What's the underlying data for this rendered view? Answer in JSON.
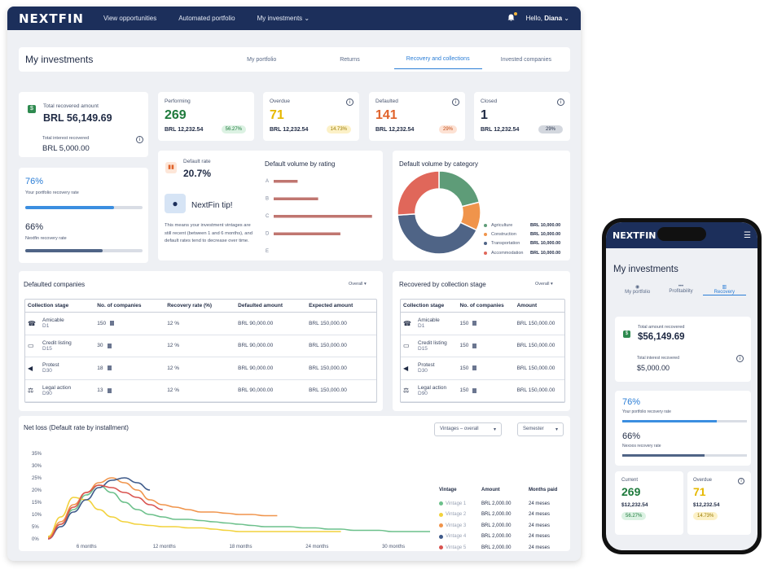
{
  "nav": {
    "logo": "NEXTFIN",
    "links": [
      "View opportunities",
      "Automated portfolio",
      "My investments"
    ],
    "greeting": "Hello, ",
    "user": "Diana"
  },
  "page": {
    "title": "My investments",
    "tabs": [
      "My portfolio",
      "Returns",
      "Recovery and collections",
      "Invested companies"
    ],
    "active_tab": 2
  },
  "recovered": {
    "label": "Total recovered amount",
    "value": "BRL 56,149.69",
    "interest_label": "Total interest recovered",
    "interest_value": "BRL 5,000.00"
  },
  "rates": {
    "portfolio_value": "76%",
    "portfolio_label": "Your portfolio recovery rate",
    "portfolio_fill": 0.76,
    "nextfin_value": "66%",
    "nextfin_label": "Nextfin recovery rate",
    "nextfin_fill": 0.66
  },
  "status": [
    {
      "label": "Performing",
      "count": "269",
      "amount": "BRL 12,232.54",
      "pct": "56.27%",
      "color": "#1e7a3c",
      "pill_bg": "#dcf2e3",
      "pill_fg": "#1e7a3c"
    },
    {
      "label": "Overdue",
      "count": "71",
      "amount": "BRL 12,232.54",
      "pct": "14.73%",
      "color": "#e6b800",
      "pill_bg": "#fcf1c7",
      "pill_fg": "#9a7a00"
    },
    {
      "label": "Defaulted",
      "count": "141",
      "amount": "BRL 12,232.54",
      "pct": "29%",
      "color": "#e0622a",
      "pill_bg": "#fde2d4",
      "pill_fg": "#c04a15"
    },
    {
      "label": "Closed",
      "count": "1",
      "amount": "BRL 12,232.54",
      "pct": "29%",
      "color": "#1f2a44",
      "pill_bg": "#d3d7de",
      "pill_fg": "#1f2a44"
    }
  ],
  "default_rate": {
    "label": "Default rate",
    "value": "20.7%",
    "tip_title": "NextFin tip!",
    "tip_text": "This means your investment vintages are still recent (between 1 and 6 months), and default rates tend to decrease over time."
  },
  "rating_chart": {
    "title": "Default volume by rating",
    "categories": [
      "A",
      "B",
      "C",
      "D",
      "E"
    ],
    "values": [
      28,
      52,
      115,
      78,
      0
    ],
    "bar_color": "#c07670"
  },
  "category_chart": {
    "title": "Default volume by category",
    "slices": [
      {
        "name": "Agriculture",
        "value": "BRL 10,000.00",
        "share": 0.21,
        "color": "#5e9c78"
      },
      {
        "name": "Construction",
        "value": "BRL 10,000.00",
        "share": 0.11,
        "color": "#f0944b"
      },
      {
        "name": "Transportation",
        "value": "BRL 10,000.00",
        "share": 0.42,
        "color": "#4f6486"
      },
      {
        "name": "Accommodation",
        "value": "BRL 10,000.00",
        "share": 0.26,
        "color": "#e0675a"
      }
    ]
  },
  "defaulted": {
    "title": "Defaulted companies",
    "filter": "Overall",
    "headers": [
      "Collection stage",
      "No. of companies",
      "Recovery rate (%)",
      "Defaulted amount",
      "Expected amount"
    ],
    "rows": [
      {
        "stage": "Amicable",
        "sub": "D1",
        "icon": "☎",
        "count": "150",
        "rate": "12 %",
        "defaulted": "BRL 90,000.00",
        "expected": "BRL 150,000.00"
      },
      {
        "stage": "Credit listing",
        "sub": "D15",
        "icon": "▭",
        "count": "30",
        "rate": "12 %",
        "defaulted": "BRL 90,000.00",
        "expected": "BRL 150,000.00"
      },
      {
        "stage": "Protest",
        "sub": "D30",
        "icon": "◀",
        "count": "18",
        "rate": "12 %",
        "defaulted": "BRL 90,000.00",
        "expected": "BRL 150,000.00"
      },
      {
        "stage": "Legal action",
        "sub": "D90",
        "icon": "⚖",
        "count": "13",
        "rate": "12 %",
        "defaulted": "BRL 90,000.00",
        "expected": "BRL 150,000.00"
      }
    ]
  },
  "recovered_stage": {
    "title": "Recovered by collection stage",
    "filter": "Overall",
    "headers": [
      "Collection stage",
      "No. of companies",
      "Amount"
    ],
    "rows": [
      {
        "stage": "Amicable",
        "sub": "D1",
        "icon": "☎",
        "count": "150",
        "amount": "BRL 150,000.00"
      },
      {
        "stage": "Credit listing",
        "sub": "D15",
        "icon": "▭",
        "count": "150",
        "amount": "BRL 150,000.00"
      },
      {
        "stage": "Protest",
        "sub": "D30",
        "icon": "◀",
        "count": "150",
        "amount": "BRL 150,000.00"
      },
      {
        "stage": "Legal action",
        "sub": "D90",
        "icon": "⚖",
        "count": "150",
        "amount": "BRL 150,000.00"
      }
    ]
  },
  "netloss": {
    "title": "Net loss (Default rate by installment)",
    "filter1": "Vintages – overall",
    "filter2": "Semester",
    "legend_headers": [
      "Vintage",
      "Amount",
      "Months paid"
    ],
    "legend": [
      {
        "name": "Vintage 1",
        "amount": "BRL 2,000.00",
        "months": "24 meses",
        "color": "#6cc08b"
      },
      {
        "name": "Vintage 2",
        "amount": "BRL 2,000.00",
        "months": "24 meses",
        "color": "#f2d23c"
      },
      {
        "name": "Vintage 3",
        "amount": "BRL 2,000.00",
        "months": "24 meses",
        "color": "#f0944b"
      },
      {
        "name": "Vintage 4",
        "amount": "BRL 2,000.00",
        "months": "24 meses",
        "color": "#3e5a8a"
      },
      {
        "name": "Vintage 5",
        "amount": "BRL 2,000.00",
        "months": "24 meses",
        "color": "#d9534f"
      }
    ]
  },
  "chart_data": {
    "type": "line",
    "title": "Net loss (Default rate by installment)",
    "xlabel": "",
    "ylabel": "",
    "x_ticks": [
      "6 months",
      "12 months",
      "18 months",
      "24 months",
      "30 months"
    ],
    "y_ticks": [
      "0%",
      "5%",
      "10%",
      "15%",
      "20%",
      "25%",
      "30%",
      "35%"
    ],
    "ylim": [
      0,
      35
    ],
    "x": [
      3,
      4,
      5,
      6,
      7,
      8,
      9,
      10,
      11,
      12,
      13,
      14,
      15,
      16,
      17,
      18,
      19,
      20,
      21,
      22,
      23,
      24,
      25,
      26,
      27,
      28,
      29,
      30,
      31,
      32,
      33
    ],
    "series": [
      {
        "name": "Vintage 1",
        "color": "#6cc08b",
        "values": [
          1,
          6,
          12,
          18,
          22,
          19,
          15,
          12,
          10,
          9,
          8,
          8,
          7.5,
          7,
          6.5,
          6,
          5.5,
          5,
          5,
          5,
          4.5,
          4.5,
          4,
          4,
          3.5,
          3.5,
          3.5,
          3,
          3,
          3,
          3
        ]
      },
      {
        "name": "Vintage 2",
        "color": "#f2d23c",
        "values": [
          1,
          9,
          17,
          16,
          12,
          9,
          7,
          6,
          5.5,
          5,
          5,
          4.5,
          4.5,
          4,
          3.5,
          3,
          3,
          3,
          3,
          3,
          3,
          3,
          3,
          3,
          null,
          null,
          null,
          null,
          null,
          null,
          null
        ]
      },
      {
        "name": "Vintage 3",
        "color": "#f0944b",
        "values": [
          0.5,
          7,
          14,
          19,
          23,
          25,
          23,
          20,
          16,
          14,
          13,
          12,
          11,
          11,
          10.5,
          10,
          10,
          9.5,
          9.5,
          null,
          null,
          null,
          null,
          null,
          null,
          null,
          null,
          null,
          null,
          null,
          null
        ]
      },
      {
        "name": "Vintage 4",
        "color": "#3e5a8a",
        "values": [
          0,
          5,
          11,
          16,
          21,
          24,
          25,
          23,
          20,
          null,
          null,
          null,
          null,
          null,
          null,
          null,
          null,
          null,
          null,
          null,
          null,
          null,
          null,
          null,
          null,
          null,
          null,
          null,
          null,
          null,
          null
        ]
      },
      {
        "name": "Vintage 5",
        "color": "#d9534f",
        "values": [
          0,
          6,
          13,
          19,
          22,
          21,
          19,
          17,
          14,
          12,
          null,
          null,
          null,
          null,
          null,
          null,
          null,
          null,
          null,
          null,
          null,
          null,
          null,
          null,
          null,
          null,
          null,
          null,
          null,
          null,
          null
        ]
      }
    ]
  },
  "phone": {
    "logo": "NEXTFIN",
    "title": "My investments",
    "tabs": [
      "My portfolio",
      "Profitability",
      "Recovery"
    ],
    "active_tab": 2,
    "recovered_label": "Total amount recovered",
    "recovered_value": "$56,149.69",
    "interest_label": "Total interest recovered",
    "interest_value": "$5,000.00",
    "portfolio_value": "76%",
    "portfolio_label": "Your portfolio recovery rate",
    "portfolio_fill": 0.76,
    "nextfin_value": "66%",
    "nextfin_label": "Nexoos recovery rate",
    "nextfin_fill": 0.66,
    "current_label": "Current",
    "current_count": "269",
    "current_amount": "$12,232.54",
    "current_pct": "56.27%",
    "overdue_label": "Overdue",
    "overdue_count": "71",
    "overdue_amount": "$12,232.54",
    "overdue_pct": "14.73%"
  }
}
